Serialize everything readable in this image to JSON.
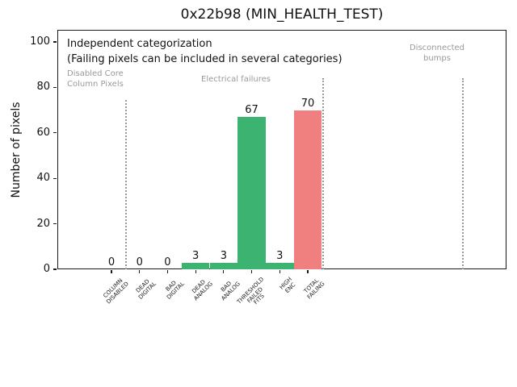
{
  "figure": {
    "title": "0x22b98 (MIN_HEALTH_TEST)",
    "ylabel": "Number of pixels"
  },
  "annotations": {
    "line1": "Independent categorization",
    "line2": "(Failing pixels can be included in several categories)",
    "section_disabled_line1": "Disabled Core",
    "section_disabled_line2": "Column Pixels",
    "section_electrical": "Electrical failures",
    "section_bumps_line1": "Disconnected",
    "section_bumps_line2": "bumps"
  },
  "chart_data": {
    "type": "bar",
    "title": "0x22b98 (MIN_HEALTH_TEST)",
    "xlabel": "",
    "ylabel": "Number of pixels",
    "ylim": [
      0,
      105
    ],
    "yticks": [
      0,
      20,
      40,
      60,
      80,
      100
    ],
    "grid": false,
    "legend": null,
    "categories": [
      [
        "COLUMN",
        "DISABLED"
      ],
      [
        "DEAD",
        "DIGITAL"
      ],
      [
        "BAD",
        "DIGITAL"
      ],
      [
        "DEAD",
        "ANALOG"
      ],
      [
        "BAD",
        "ANALOG"
      ],
      [
        "THRESHOLD",
        "FAILED",
        "FITS"
      ],
      [
        "HIGH",
        "ENC"
      ],
      [
        "TOTAL",
        "FAILING"
      ]
    ],
    "values": [
      0,
      0,
      0,
      3,
      3,
      67,
      3,
      70
    ],
    "bar_value_labels": [
      "0",
      "0",
      "0",
      "3",
      "3",
      "67",
      "3",
      "70"
    ],
    "bar_colors": [
      "#3cb371",
      "#3cb371",
      "#3cb371",
      "#3cb371",
      "#3cb371",
      "#3cb371",
      "#3cb371",
      "#f08080"
    ],
    "sections": [
      {
        "label": "Disabled Core Column Pixels",
        "contains": [
          "COLUMN DISABLED"
        ]
      },
      {
        "label": "Electrical failures",
        "contains": [
          "DEAD DIGITAL",
          "BAD DIGITAL",
          "DEAD ANALOG",
          "BAD ANALOG",
          "THRESHOLD FAILED FITS",
          "HIGH ENC",
          "TOTAL FAILING"
        ]
      },
      {
        "label": "Disconnected bumps",
        "contains": []
      }
    ]
  },
  "colors": {
    "bar_green": "#3cb371",
    "bar_red": "#f08080",
    "annotation_gray": "#999999",
    "text": "#111111"
  }
}
